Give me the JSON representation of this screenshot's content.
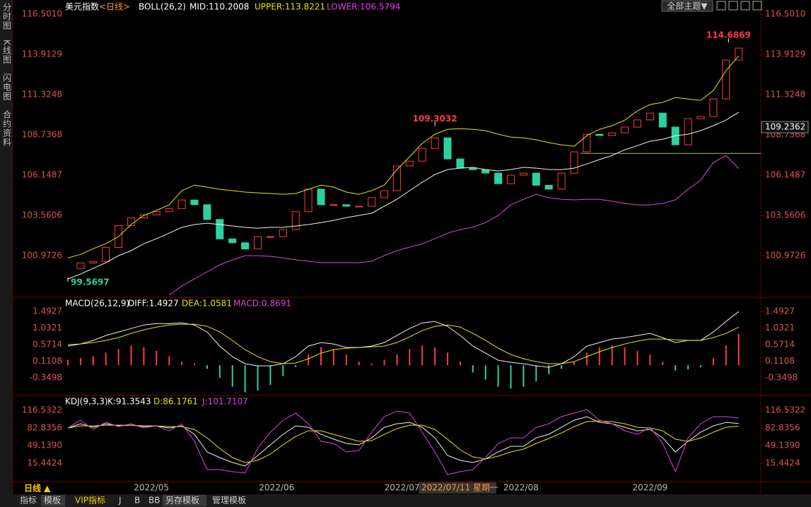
{
  "toolbar": {
    "left": [
      "分时图",
      "K线图",
      "闪电图",
      "合约资料"
    ],
    "theme": "全部主题▼",
    "tabs": [
      "指标",
      "模板",
      "VIP指标",
      "J",
      "B",
      "BB",
      "另存模板",
      "管理模板"
    ],
    "period": "日线 ▲",
    "cursor_date": "2022/07/11 星期一"
  },
  "chart_data": [
    {
      "type": "candlestick",
      "legend": [
        {
          "text": "美元指数",
          "color": "#ffffff"
        },
        {
          "text": "<日线>",
          "color": "#ff9933"
        },
        {
          "text": "BOLL(26,2)",
          "color": "#ffffff"
        },
        {
          "text": "MID:110.2008",
          "color": "#ffffff"
        },
        {
          "text": "UPPER:113.8221",
          "color": "#e6e600"
        },
        {
          "text": "LOWER:106.5794",
          "color": "#e040e0"
        }
      ],
      "ylim": [
        98.34,
        117.05
      ],
      "yticks": [
        {
          "value": 116.501,
          "label": "116.5010"
        },
        {
          "value": 113.9129,
          "label": "113.9129"
        },
        {
          "value": 111.3248,
          "label": "111.3248"
        },
        {
          "value": 108.7368,
          "label": "108.7368"
        },
        {
          "value": 106.1487,
          "label": "106.1487"
        },
        {
          "value": 103.5606,
          "label": "103.5606"
        },
        {
          "value": 100.9726,
          "label": "100.9726"
        }
      ],
      "current": {
        "value": 109.2362,
        "label": "109.2362"
      },
      "up_color": "#ff3b3b",
      "down_color": "#2bd1a1",
      "close": [
        100.15,
        100.5,
        100.6,
        101.5,
        102.9,
        103.4,
        103.6,
        103.8,
        104.0,
        104.55,
        104.25,
        103.3,
        102.05,
        101.8,
        101.4,
        102.2,
        102.2,
        102.65,
        103.8,
        105.25,
        104.25,
        104.25,
        104.15,
        104.15,
        104.7,
        105.15,
        106.74,
        107.05,
        107.87,
        108.55,
        107.19,
        106.6,
        106.5,
        106.28,
        105.6,
        106.15,
        106.28,
        105.5,
        105.25,
        106.28,
        107.65,
        108.78,
        108.7,
        108.87,
        109.24,
        109.7,
        110.14,
        109.24,
        108.1,
        109.78,
        109.92,
        111.05,
        113.55,
        114.32
      ],
      "lines": [
        {
          "color": "#e6e600",
          "values": [
            100.83,
            101.05,
            101.42,
            101.74,
            102.2,
            102.97,
            103.56,
            103.88,
            104.24,
            105.15,
            105.51,
            105.38,
            105.24,
            105.15,
            105.06,
            105.01,
            104.97,
            104.92,
            104.97,
            105.24,
            105.51,
            105.38,
            105.06,
            104.92,
            105.15,
            105.51,
            106.51,
            107.33,
            108.19,
            108.78,
            109.1,
            109.14,
            109.1,
            109.01,
            108.78,
            108.6,
            108.55,
            108.42,
            108.24,
            108.1,
            108.01,
            108.69,
            109.1,
            109.33,
            109.69,
            110.28,
            110.69,
            110.83,
            111.14,
            111.05,
            110.96,
            111.59,
            112.87,
            113.82
          ]
        },
        {
          "color": "#f0f0f0",
          "values": [
            99.47,
            99.79,
            100.15,
            100.52,
            100.97,
            101.29,
            101.74,
            102.06,
            102.42,
            102.79,
            102.97,
            103.06,
            102.97,
            102.88,
            102.79,
            102.74,
            102.79,
            102.79,
            102.88,
            102.97,
            103.1,
            103.24,
            103.42,
            103.56,
            103.7,
            104.15,
            104.6,
            105.15,
            105.69,
            106.19,
            106.51,
            106.6,
            106.65,
            106.51,
            106.42,
            106.51,
            106.65,
            106.6,
            106.51,
            106.51,
            106.6,
            106.87,
            107.15,
            107.42,
            107.78,
            108.05,
            108.33,
            108.46,
            108.69,
            108.78,
            109.01,
            109.33,
            109.69,
            110.2
          ]
        },
        {
          "color": "#e040e0",
          "values": [
            null,
            null,
            null,
            null,
            null,
            null,
            null,
            null,
            98.43,
            99.02,
            99.47,
            99.93,
            100.38,
            100.7,
            100.97,
            100.97,
            100.93,
            100.83,
            100.7,
            100.61,
            100.52,
            100.52,
            100.52,
            100.52,
            100.61,
            100.97,
            101.29,
            101.52,
            101.74,
            102.06,
            102.42,
            102.65,
            102.79,
            103.1,
            103.56,
            104.24,
            104.6,
            104.92,
            104.7,
            104.6,
            104.56,
            104.6,
            104.6,
            104.47,
            104.33,
            104.24,
            104.24,
            104.33,
            104.56,
            105.24,
            105.83,
            106.96,
            107.42,
            106.58
          ]
        }
      ],
      "support_line": {
        "y": 107.55,
        "x_start": 40.5,
        "color": "#9acd32"
      },
      "annotations": [
        {
          "x": 52.2,
          "value": 114.6869,
          "label": "114.6869",
          "color": "#ff3b3b"
        },
        {
          "x": 29,
          "value": 109.3032,
          "label": "109.3032",
          "color": "#ff3b3b"
        },
        {
          "x": 0,
          "value": 99.5697,
          "label": "99.5697",
          "color": "#2bd1a1"
        }
      ]
    },
    {
      "type": "macd",
      "legend": [
        {
          "text": "MACD(26,12,9)",
          "color": "#ffffff"
        },
        {
          "text": "DIFF:1.4927",
          "color": "#ffffff"
        },
        {
          "text": "DEA:1.0581",
          "color": "#e6e600"
        },
        {
          "text": "MACD:0.8691",
          "color": "#e040e0"
        }
      ],
      "ylim": [
        -0.8,
        1.81
      ],
      "yticks": [
        1.4927,
        1.0321,
        0.5714,
        0.1108,
        -0.3498
      ],
      "histogram": [
        0.15,
        0.2,
        0.25,
        0.35,
        0.45,
        0.55,
        0.5,
        0.4,
        0.25,
        0.1,
        0.05,
        -0.1,
        -0.35,
        -0.6,
        -0.75,
        -0.7,
        -0.55,
        -0.3,
        -0.05,
        0.3,
        0.5,
        0.45,
        0.3,
        0.1,
        0.05,
        0.15,
        0.3,
        0.45,
        0.55,
        0.5,
        0.35,
        0.1,
        -0.2,
        -0.4,
        -0.6,
        -0.65,
        -0.6,
        -0.45,
        -0.25,
        -0.1,
        0.1,
        0.35,
        0.5,
        0.55,
        0.5,
        0.4,
        0.3,
        0.1,
        -0.15,
        -0.12,
        -0.05,
        0.2,
        0.55,
        0.87
      ],
      "lines": [
        {
          "color": "#f0f0f0",
          "values": [
            0.532,
            0.591,
            0.689,
            0.826,
            0.924,
            1.022,
            1.12,
            1.159,
            1.159,
            1.179,
            1.12,
            0.924,
            0.532,
            0.238,
            0.042,
            -0.017,
            -0.017,
            0.042,
            0.238,
            0.532,
            0.63,
            0.591,
            0.493,
            0.493,
            0.532,
            0.63,
            0.826,
            1.022,
            1.179,
            1.218,
            1.081,
            0.826,
            0.532,
            0.336,
            0.14,
            0.081,
            0.042,
            -0.017,
            -0.056,
            0.042,
            0.238,
            0.532,
            0.63,
            0.728,
            0.767,
            0.826,
            0.885,
            0.767,
            0.63,
            0.689,
            0.689,
            0.924,
            1.218,
            1.49
          ]
        },
        {
          "color": "#e6e600",
          "values": [
            0.571,
            0.591,
            0.63,
            0.689,
            0.767,
            0.885,
            0.983,
            1.061,
            1.12,
            1.14,
            1.14,
            1.081,
            0.924,
            0.689,
            0.434,
            0.238,
            0.1,
            0.042,
            0.061,
            0.179,
            0.336,
            0.434,
            0.473,
            0.493,
            0.512,
            0.532,
            0.63,
            0.787,
            0.963,
            1.081,
            1.12,
            1.061,
            0.885,
            0.689,
            0.473,
            0.297,
            0.179,
            0.1,
            0.042,
            0.042,
            0.1,
            0.238,
            0.375,
            0.493,
            0.591,
            0.669,
            0.728,
            0.728,
            0.708,
            0.689,
            0.689,
            0.767,
            0.885,
            1.058
          ]
        }
      ]
    },
    {
      "type": "kdj",
      "legend": [
        {
          "text": "KDJ(9,3,3)",
          "color": "#ffffff"
        },
        {
          "text": "K:91.3543",
          "color": "#ffffff"
        },
        {
          "text": "D:86.1761",
          "color": "#e6e600"
        },
        {
          "text": "J:101.7107",
          "color": "#e040e0"
        }
      ],
      "ylim": [
        -17,
        141
      ],
      "yticks": [
        116.5322,
        82.8356,
        {
          "value": 49.139,
          "label": "49.1390"
        },
        15.4424
      ],
      "lines": [
        {
          "color": "#f0f0f0",
          "values": [
            82.83,
            90.92,
            84.18,
            90.92,
            86.87,
            88.22,
            85.53,
            86.87,
            82.83,
            86.87,
            70.7,
            37,
            26.21,
            16.78,
            10.04,
            30.26,
            50.48,
            70.7,
            86.87,
            84.18,
            70.7,
            61.26,
            53.17,
            50.48,
            63.95,
            84.18,
            90.92,
            93.61,
            84.18,
            63.95,
            30.26,
            20.82,
            16.78,
            23.52,
            37,
            47.78,
            47.78,
            63.95,
            70.7,
            84.18,
            97.66,
            104.4,
            93.61,
            90.92,
            84.18,
            77.44,
            80.13,
            63.95,
            37,
            57.22,
            74.74,
            86.87,
            93.61,
            91.35
          ]
        },
        {
          "color": "#e6e600",
          "values": [
            82.83,
            86.87,
            86.87,
            88.22,
            88.22,
            88.22,
            86.87,
            86.87,
            85.53,
            85.53,
            80.13,
            63.95,
            43.74,
            26.21,
            16.78,
            20.82,
            32.95,
            50.48,
            66.65,
            77.44,
            77.44,
            70.7,
            63.95,
            57.22,
            58.56,
            70.7,
            81.48,
            88.22,
            88.22,
            80.13,
            61.26,
            41.04,
            27.56,
            23.52,
            28.91,
            37,
            42.39,
            53.17,
            62.61,
            73.39,
            85.53,
            94.96,
            96.31,
            94.96,
            90.92,
            84.18,
            82.83,
            77.44,
            61.26,
            57.22,
            63.95,
            74.74,
            84.18,
            86.18
          ]
        },
        {
          "color": "#e040e0",
          "values": [
            82.83,
            97.66,
            80.13,
            93.61,
            85.53,
            90.92,
            82.83,
            86.87,
            77.44,
            90.92,
            57.22,
            3.3,
            3.3,
            -0.74,
            -3.44,
            43.74,
            74.74,
            97.66,
            111.14,
            90.92,
            57.22,
            53.17,
            37,
            39.69,
            74.74,
            104.4,
            115.18,
            111.14,
            74.74,
            37,
            -6.14,
            -0.74,
            3.3,
            26.21,
            53.17,
            63.95,
            63.95,
            84.18,
            90.92,
            104.4,
            111.14,
            117.88,
            97.66,
            90.92,
            77.44,
            70.7,
            84.18,
            53.17,
            -0.74,
            63.95,
            90.92,
            104.4,
            104.4,
            101.71
          ]
        }
      ],
      "xticks": [
        {
          "value": 6.6,
          "label": "2022/05"
        },
        {
          "value": 16.5,
          "label": "2022/06"
        },
        {
          "value": 26.4,
          "label": "2022/07"
        },
        {
          "value": 35.8,
          "label": "2022/08"
        },
        {
          "value": 46,
          "label": "2022/09"
        }
      ]
    }
  ]
}
